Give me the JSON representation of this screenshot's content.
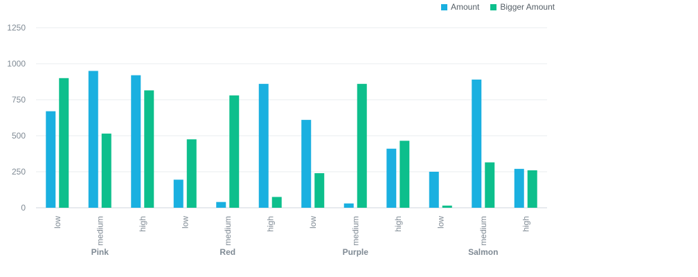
{
  "chart_data": {
    "type": "bar",
    "groups": [
      {
        "name": "Pink",
        "categories": [
          "low",
          "medium",
          "high"
        ]
      },
      {
        "name": "Red",
        "categories": [
          "low",
          "medium",
          "high"
        ]
      },
      {
        "name": "Purple",
        "categories": [
          "low",
          "medium",
          "high"
        ]
      },
      {
        "name": "Salmon",
        "categories": [
          "low",
          "medium",
          "high"
        ]
      }
    ],
    "series": [
      {
        "name": "Amount",
        "color": "#1ab0e0",
        "values": [
          670,
          950,
          920,
          195,
          40,
          860,
          610,
          30,
          410,
          250,
          890,
          270
        ]
      },
      {
        "name": "Bigger Amount",
        "color": "#0dbf8c",
        "values": [
          900,
          515,
          815,
          475,
          780,
          75,
          240,
          860,
          465,
          15,
          315,
          260
        ]
      }
    ],
    "yticks": [
      "0",
      "250",
      "500",
      "750",
      "1000",
      "1250"
    ],
    "ylim": [
      0,
      1250
    ],
    "grid": true,
    "legend_position": "top-right"
  }
}
